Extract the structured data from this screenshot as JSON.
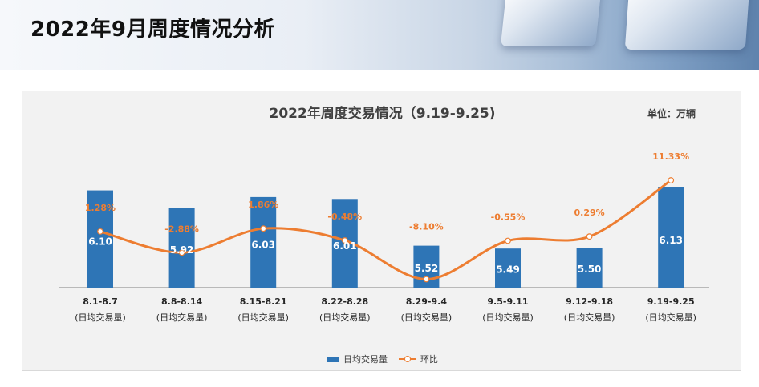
{
  "header": {
    "title": "2022年9月周度情况分析"
  },
  "chart": {
    "unit": "单位：万辆"
  },
  "legend": {
    "bar_label": "日均交易量",
    "line_label": "环比"
  },
  "colors": {
    "bar": "#2e75b6",
    "line": "#ed7d31",
    "panel_background": "#f2f2f2"
  },
  "chart_data": {
    "type": "bar",
    "title": "2022年周度交易情况（9.19-9.25)",
    "categories": [
      "8.1-8.7",
      "8.8-8.14",
      "8.15-8.21",
      "8.22-8.28",
      "8.29-9.4",
      "9.5-9.11",
      "9.12-9.18",
      "9.19-9.25"
    ],
    "category_sublabel": "(日均交易量)",
    "series": [
      {
        "name": "日均交易量",
        "type": "bar",
        "values": [
          6.1,
          5.92,
          6.03,
          6.01,
          5.52,
          5.49,
          5.5,
          6.13
        ],
        "labels": [
          "6.10",
          "5.92",
          "6.03",
          "6.01",
          "5.52",
          "5.49",
          "5.50",
          "6.13"
        ]
      },
      {
        "name": "环比",
        "type": "line",
        "values": [
          1.28,
          -2.88,
          1.86,
          -0.48,
          -8.1,
          -0.55,
          0.29,
          11.33
        ],
        "labels": [
          "1.28%",
          "-2.88%",
          "1.86%",
          "-0.48%",
          "-8.10%",
          "-0.55%",
          "0.29%",
          "11.33%"
        ]
      }
    ],
    "grid": false,
    "legend_position": "bottom"
  }
}
